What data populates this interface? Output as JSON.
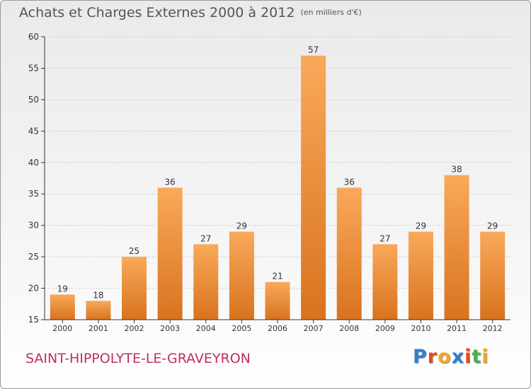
{
  "title": {
    "main": "Achats et Charges Externes 2000 à 2012",
    "unit": "(en milliers d'€)"
  },
  "commune": "SAINT-HIPPOLYTE-LE-GRAVEYRON",
  "logo": {
    "text": "Proxiti",
    "letters": [
      "P",
      "r",
      "o",
      "x",
      "i",
      "t",
      "i"
    ],
    "colors": [
      "#2f7fd0",
      "#e64a1e",
      "#f5a623",
      "#2f7fd0",
      "#e64a1e",
      "#4caf50",
      "#f5a623"
    ]
  },
  "colors": {
    "bar_light": "#f9a95a",
    "bar_dark": "#d8731f",
    "axis": "#333333",
    "grid": "#cccccc",
    "text": "#333333"
  },
  "chart_data": {
    "type": "bar",
    "categories": [
      "2000",
      "2001",
      "2002",
      "2003",
      "2004",
      "2005",
      "2006",
      "2007",
      "2008",
      "2009",
      "2010",
      "2011",
      "2012"
    ],
    "values": [
      19,
      18,
      25,
      36,
      27,
      29,
      21,
      57,
      36,
      27,
      29,
      38,
      29
    ],
    "title": "Achats et Charges Externes 2000 à 2012",
    "xlabel": "",
    "ylabel": "",
    "ylim": [
      15,
      60
    ],
    "yticks": [
      15,
      20,
      25,
      30,
      35,
      40,
      45,
      50,
      55,
      60
    ],
    "grid": true,
    "data_labels": true
  }
}
